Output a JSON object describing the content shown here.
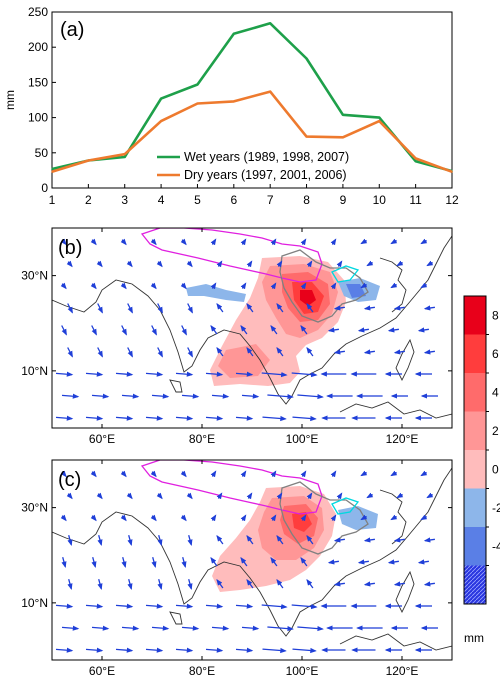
{
  "chart_data": [
    {
      "type": "line",
      "panel_label": "(a)",
      "ylabel": "mm",
      "xlabel": "",
      "ylim": [
        0,
        250
      ],
      "xlim": [
        1,
        12
      ],
      "x": [
        1,
        2,
        3,
        4,
        5,
        6,
        7,
        8,
        9,
        10,
        11,
        12
      ],
      "x_ticks": [
        "1",
        "2",
        "3",
        "4",
        "5",
        "6",
        "7",
        "8",
        "9",
        "10",
        "11",
        "12"
      ],
      "y_ticks": [
        "0",
        "50",
        "100",
        "150",
        "200",
        "250"
      ],
      "legend_position": "lower-center",
      "series": [
        {
          "name": "Wet years (1989, 1998, 2007)",
          "color": "#1ea04a",
          "values": [
            27,
            39,
            44,
            127,
            147,
            219,
            234,
            184,
            104,
            100,
            38,
            24
          ]
        },
        {
          "name": "Dry years (1997, 2001, 2006)",
          "color": "#ee7a2e",
          "values": [
            23,
            39,
            48,
            95,
            120,
            123,
            137,
            73,
            72,
            95,
            42,
            23
          ]
        }
      ]
    },
    {
      "type": "heatmap",
      "panel_label": "(b)",
      "lon_range": [
        50,
        130
      ],
      "lat_range": [
        -2,
        40
      ],
      "x_ticks": [
        "60°E",
        "80°E",
        "100°E",
        "120°E"
      ],
      "y_ticks": [
        "10°N",
        "30°N"
      ]
    },
    {
      "type": "heatmap",
      "panel_label": "(c)",
      "lon_range": [
        50,
        130
      ],
      "lat_range": [
        -2,
        40
      ],
      "x_ticks": [
        "60°E",
        "80°E",
        "100°E",
        "120°E"
      ],
      "y_ticks": [
        "10°N",
        "30°N"
      ]
    }
  ],
  "colorbar": {
    "tick_labels": [
      "8",
      "6",
      "4",
      "2",
      "0",
      "-2",
      "-4"
    ],
    "unit": "mm",
    "colors": [
      "#e8001a",
      "#ff3d3d",
      "#ff6b6b",
      "#ff9696",
      "#ffbcbc",
      "#8db6ea",
      "#5a7fe6",
      "#2a36e0"
    ]
  },
  "colors": {
    "tibet_outline": "#e020e0",
    "basin_outline": "#808080",
    "lake_outline": "#00d8e0",
    "wind_vectors": "#1f3fd8"
  }
}
